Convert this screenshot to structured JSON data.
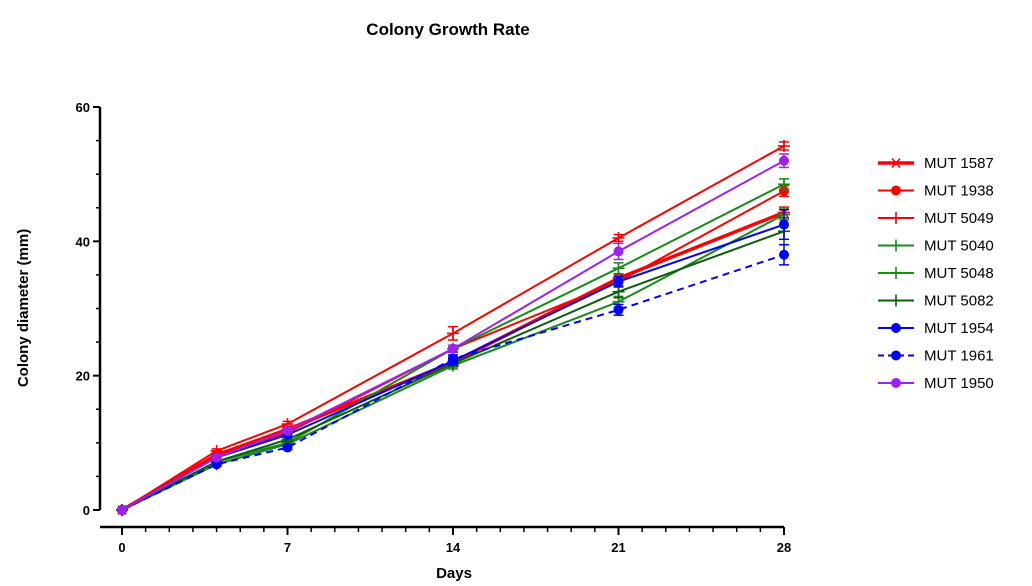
{
  "chart_data": {
    "type": "line",
    "title": "Colony Growth Rate",
    "xlabel": "Days",
    "ylabel": "Colony diameter (mm)",
    "xlim": [
      0,
      28
    ],
    "ylim": [
      0,
      60
    ],
    "x_ticks": [
      0,
      7,
      14,
      21,
      28
    ],
    "x_minor_ticks": [
      1,
      2,
      3,
      4,
      5,
      6,
      8,
      9,
      10,
      11,
      12,
      13,
      15,
      16,
      17,
      18,
      19,
      20,
      22,
      23,
      24,
      25,
      26,
      27
    ],
    "y_ticks": [
      0,
      20,
      40,
      60
    ],
    "y_minor_ticks": [
      5,
      10,
      15,
      25,
      30,
      35,
      45,
      50,
      55
    ],
    "grid": false,
    "legend_position": "right",
    "x": [
      0,
      4,
      7,
      14,
      21,
      28
    ],
    "series": [
      {
        "name": "MUT 1587",
        "color": "#ff0000",
        "marker": "asterisk",
        "dash": "solid",
        "width": 3.5,
        "values": [
          0,
          8.2,
          12.0,
          22.0,
          34.5,
          44.3
        ],
        "errors": [
          0,
          0.3,
          0.3,
          0.5,
          0.6,
          0.8
        ]
      },
      {
        "name": "MUT 1938",
        "color": "#ff0000",
        "marker": "circle",
        "dash": "solid",
        "width": 2,
        "values": [
          0,
          8.0,
          11.5,
          24.0,
          34.0,
          47.5
        ],
        "errors": [
          0,
          0.3,
          0.3,
          0.5,
          0.6,
          0.8
        ]
      },
      {
        "name": "MUT 5049",
        "color": "#ff0000",
        "marker": "plus",
        "dash": "solid",
        "width": 2,
        "values": [
          0,
          8.8,
          12.8,
          26.3,
          40.5,
          54.2
        ],
        "errors": [
          0,
          0.3,
          0.4,
          1.0,
          0.5,
          0.6
        ]
      },
      {
        "name": "MUT 5040",
        "color": "#1a8a1a",
        "marker": "plus",
        "dash": "solid",
        "width": 2,
        "values": [
          0,
          7.2,
          10.0,
          24.0,
          36.0,
          48.5
        ],
        "errors": [
          0,
          0.3,
          0.3,
          0.5,
          0.8,
          0.8
        ]
      },
      {
        "name": "MUT 5048",
        "color": "#1a8a1a",
        "marker": "plus",
        "dash": "solid",
        "width": 2,
        "values": [
          0,
          6.8,
          9.8,
          21.5,
          31.0,
          44.0
        ],
        "errors": [
          0,
          0.3,
          0.3,
          0.5,
          0.8,
          0.8
        ]
      },
      {
        "name": "MUT 5082",
        "color": "#0d5c0d",
        "marker": "plus",
        "dash": "solid",
        "width": 2,
        "values": [
          0,
          7.2,
          10.5,
          21.8,
          32.5,
          41.5
        ],
        "errors": [
          0,
          0.3,
          0.3,
          0.5,
          0.9,
          2.0
        ]
      },
      {
        "name": "MUT 1954",
        "color": "#0000ff",
        "marker": "circle",
        "dash": "solid",
        "width": 2,
        "values": [
          0,
          7.8,
          11.2,
          22.2,
          34.0,
          42.5
        ],
        "errors": [
          0,
          0.3,
          0.3,
          0.6,
          0.8,
          2.2
        ]
      },
      {
        "name": "MUT 1961",
        "color": "#0000ff",
        "marker": "circle",
        "dash": "dashed",
        "width": 2,
        "values": [
          0,
          6.8,
          9.3,
          22.5,
          29.8,
          38.0
        ],
        "errors": [
          0,
          0.3,
          0.3,
          0.6,
          0.8,
          1.5
        ]
      },
      {
        "name": "MUT 1950",
        "color": "#a020f0",
        "marker": "circle",
        "dash": "solid",
        "width": 2,
        "values": [
          0,
          7.8,
          11.8,
          24.0,
          38.5,
          52.0
        ],
        "errors": [
          0,
          0.3,
          0.3,
          0.5,
          1.2,
          1.0
        ]
      }
    ]
  }
}
